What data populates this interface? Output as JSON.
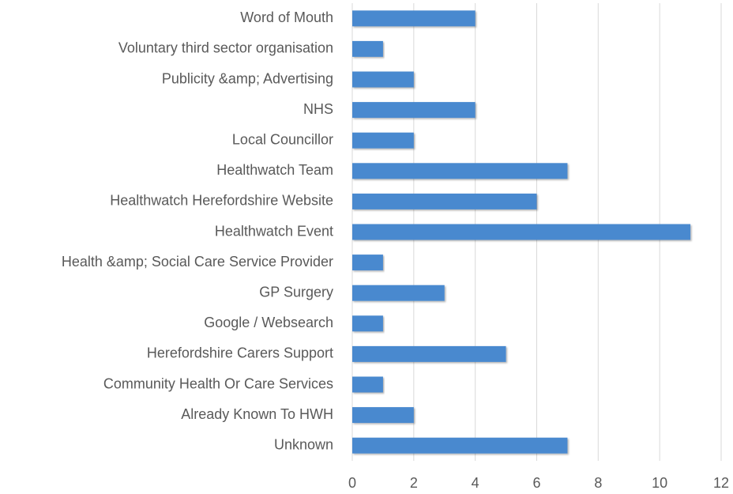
{
  "chart_data": {
    "type": "barh",
    "categories": [
      "Word of Mouth",
      "Voluntary third sector organisation",
      "Publicity &amp; Advertising",
      "NHS",
      "Local Councillor",
      "Healthwatch Team",
      "Healthwatch Herefordshire Website",
      "Healthwatch Event",
      "Health &amp; Social Care Service Provider",
      "GP Surgery",
      "Google / Websearch",
      "Herefordshire Carers Support",
      "Community Health Or Care Services",
      "Already Known To HWH",
      "Unknown"
    ],
    "values": [
      4,
      1,
      2,
      4,
      2,
      7,
      6,
      11,
      1,
      3,
      1,
      5,
      1,
      2,
      7
    ],
    "color": "#4a89cf",
    "xlim": [
      0,
      12
    ],
    "xticks": [
      0,
      2,
      4,
      6,
      8,
      10,
      12
    ],
    "grid": true
  }
}
